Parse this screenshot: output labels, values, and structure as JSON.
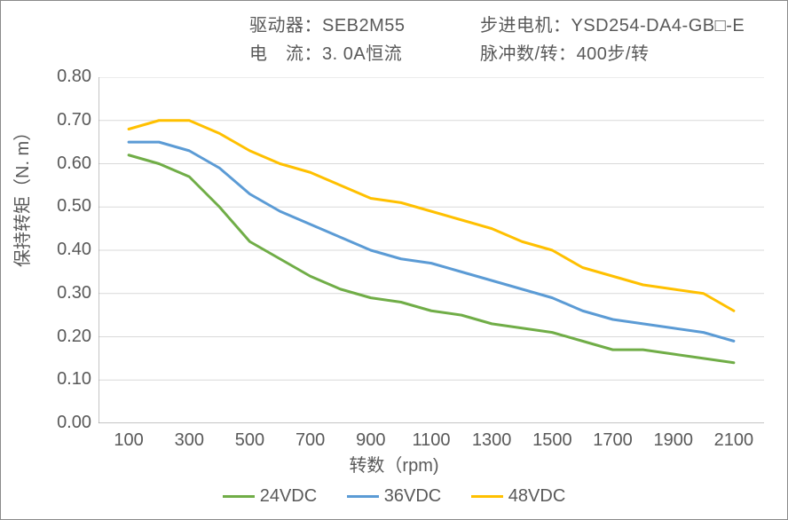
{
  "meta": {
    "driver_label": "驱动器：",
    "driver_value": "SEB2M55",
    "motor_label": "步进电机：",
    "motor_value": "YSD254-DA4-GB□-E",
    "current_label": "电　流：",
    "current_value": "3. 0A恒流",
    "pulse_label": "脉冲数/转：",
    "pulse_value": "400步/转"
  },
  "axes": {
    "x_label": "转数（rpm)",
    "y_label": "保持转矩（N. m）"
  },
  "legend": {
    "s1": "24VDC",
    "s2": "36VDC",
    "s3": "48VDC"
  },
  "chart": {
    "type": "line",
    "background_color": "#ffffff",
    "border_color": "#8a8a8a",
    "grid_color": "#d9d9d9",
    "axis_line_color": "#8a8a8a",
    "text_color": "#595959",
    "label_fontsize": 20,
    "tick_fontsize": 20,
    "line_width": 3,
    "xlim": [
      0,
      2200
    ],
    "ylim": [
      0.0,
      0.8
    ],
    "x_ticks": [
      100,
      300,
      500,
      700,
      900,
      1100,
      1300,
      1500,
      1700,
      1900,
      2100
    ],
    "y_ticks": [
      0.0,
      0.1,
      0.2,
      0.3,
      0.4,
      0.5,
      0.6,
      0.7,
      0.8
    ],
    "series": [
      {
        "name": "24VDC",
        "color": "#70ad47",
        "x": [
          100,
          200,
          300,
          400,
          500,
          600,
          700,
          800,
          900,
          1000,
          1100,
          1200,
          1300,
          1400,
          1500,
          1600,
          1700,
          1800,
          1900,
          2000,
          2100
        ],
        "y": [
          0.62,
          0.6,
          0.57,
          0.5,
          0.42,
          0.38,
          0.34,
          0.31,
          0.29,
          0.28,
          0.26,
          0.25,
          0.23,
          0.22,
          0.21,
          0.19,
          0.17,
          0.17,
          0.16,
          0.15,
          0.14
        ]
      },
      {
        "name": "36VDC",
        "color": "#5b9bd5",
        "x": [
          100,
          200,
          300,
          400,
          500,
          600,
          700,
          800,
          900,
          1000,
          1100,
          1200,
          1300,
          1400,
          1500,
          1600,
          1700,
          1800,
          1900,
          2000,
          2100
        ],
        "y": [
          0.65,
          0.65,
          0.63,
          0.59,
          0.53,
          0.49,
          0.46,
          0.43,
          0.4,
          0.38,
          0.37,
          0.35,
          0.33,
          0.31,
          0.29,
          0.26,
          0.24,
          0.23,
          0.22,
          0.21,
          0.19
        ]
      },
      {
        "name": "48VDC",
        "color": "#ffc000",
        "x": [
          100,
          200,
          300,
          400,
          500,
          600,
          700,
          800,
          900,
          1000,
          1100,
          1200,
          1300,
          1400,
          1500,
          1600,
          1700,
          1800,
          1900,
          2000,
          2100
        ],
        "y": [
          0.68,
          0.7,
          0.7,
          0.67,
          0.63,
          0.6,
          0.58,
          0.55,
          0.52,
          0.51,
          0.49,
          0.47,
          0.45,
          0.42,
          0.4,
          0.36,
          0.34,
          0.32,
          0.31,
          0.3,
          0.26
        ]
      }
    ]
  }
}
